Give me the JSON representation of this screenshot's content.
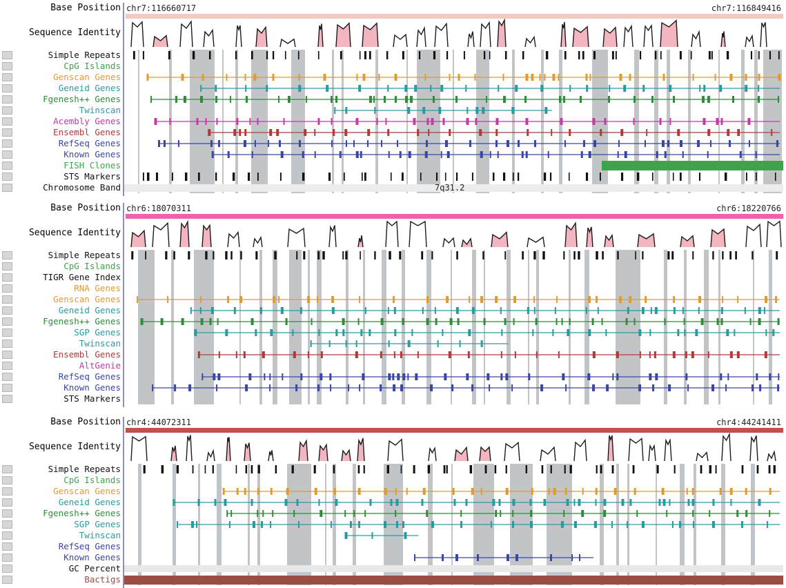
{
  "panels": [
    {
      "id": "chr7",
      "top": 0,
      "accent": "#f6c8c2",
      "coord_start": "chr7:116660717",
      "coord_end": "chr7:116849416",
      "identity_label": "Sequence Identity",
      "base_label": "Base Position",
      "tracks": [
        {
          "label": "Simple Repeats",
          "color": "#111111",
          "kind": "ticks"
        },
        {
          "label": "CpG Islands",
          "color": "#3aa54a",
          "kind": "empty"
        },
        {
          "label": "Genscan Genes",
          "color": "#e09a32",
          "kind": "gene"
        },
        {
          "label": "Geneid Genes",
          "color": "#2a9aa0",
          "kind": "gene"
        },
        {
          "label": "Fgenesh++ Genes",
          "color": "#2f8d3a",
          "kind": "gene"
        },
        {
          "label": "Twinscan",
          "color": "#2a9aa0",
          "kind": "gene-short"
        },
        {
          "label": "Acembly Genes",
          "color": "#c23aa6",
          "kind": "gene"
        },
        {
          "label": "Ensembl Genes",
          "color": "#b03a3a",
          "kind": "gene"
        },
        {
          "label": "RefSeq Genes",
          "color": "#3a46a6",
          "kind": "gene"
        },
        {
          "label": "Known Genes",
          "color": "#3a46a6",
          "kind": "gene"
        },
        {
          "label": "FISH Clones",
          "color": "#3aa54a",
          "kind": "fish"
        },
        {
          "label": "STS Markers",
          "color": "#111111",
          "kind": "ticks"
        },
        {
          "label": "Chromosome Band",
          "color": "#111111",
          "kind": "band"
        }
      ],
      "band_text": "7q31.2"
    },
    {
      "id": "chr6",
      "top": 290,
      "accent": "#f060b0",
      "coord_start": "chr6:18070311",
      "coord_end": "chr6:18220766",
      "identity_label": "Sequence Identity",
      "base_label": "Base Position",
      "tracks": [
        {
          "label": "Simple Repeats",
          "color": "#111111",
          "kind": "ticks"
        },
        {
          "label": "CpG Islands",
          "color": "#3aa54a",
          "kind": "empty"
        },
        {
          "label": "TIGR Gene Index",
          "color": "#111111",
          "kind": "empty"
        },
        {
          "label": "RNA Genes",
          "color": "#e09a32",
          "kind": "empty"
        },
        {
          "label": "Genscan Genes",
          "color": "#e09a32",
          "kind": "gene"
        },
        {
          "label": "Geneid Genes",
          "color": "#2a9aa0",
          "kind": "gene"
        },
        {
          "label": "Fgenesh++ Genes",
          "color": "#2f8d3a",
          "kind": "gene"
        },
        {
          "label": "SGP Genes",
          "color": "#2a9aa0",
          "kind": "gene"
        },
        {
          "label": "Twinscan",
          "color": "#2a9aa0",
          "kind": "gene-short"
        },
        {
          "label": "Ensembl Genes",
          "color": "#b03a3a",
          "kind": "gene"
        },
        {
          "label": "AltGenie",
          "color": "#c23aa6",
          "kind": "empty"
        },
        {
          "label": "RefSeq Genes",
          "color": "#3a46a6",
          "kind": "gene"
        },
        {
          "label": "Known Genes",
          "color": "#3a46a6",
          "kind": "gene"
        },
        {
          "label": "STS Markers",
          "color": "#111111",
          "kind": "empty"
        }
      ]
    },
    {
      "id": "chr4",
      "top": 600,
      "accent": "#c0504a",
      "coord_start": "chr4:44072311",
      "coord_end": "chr4:44241411",
      "identity_label": "Sequence Identity",
      "base_label": "Base Position",
      "tracks": [
        {
          "label": "Simple Repeats",
          "color": "#111111",
          "kind": "ticks"
        },
        {
          "label": "CpG Islands",
          "color": "#3aa54a",
          "kind": "empty"
        },
        {
          "label": "Genscan Genes",
          "color": "#e09a32",
          "kind": "gene"
        },
        {
          "label": "Geneid Genes",
          "color": "#2a9aa0",
          "kind": "gene"
        },
        {
          "label": "Fgenesh++ Genes",
          "color": "#2f8d3a",
          "kind": "gene"
        },
        {
          "label": "SGP Genes",
          "color": "#2a9aa0",
          "kind": "gene"
        },
        {
          "label": "Twinscan",
          "color": "#2a9aa0",
          "kind": "gene-short"
        },
        {
          "label": "RefSeq Genes",
          "color": "#3a46a6",
          "kind": "empty"
        },
        {
          "label": "Known Genes",
          "color": "#3a46a6",
          "kind": "gene-mid"
        },
        {
          "label": "GC Percent",
          "color": "#111111",
          "kind": "gc"
        },
        {
          "label": "Bactigs",
          "color": "#a04a44",
          "kind": "bactig"
        }
      ]
    }
  ]
}
